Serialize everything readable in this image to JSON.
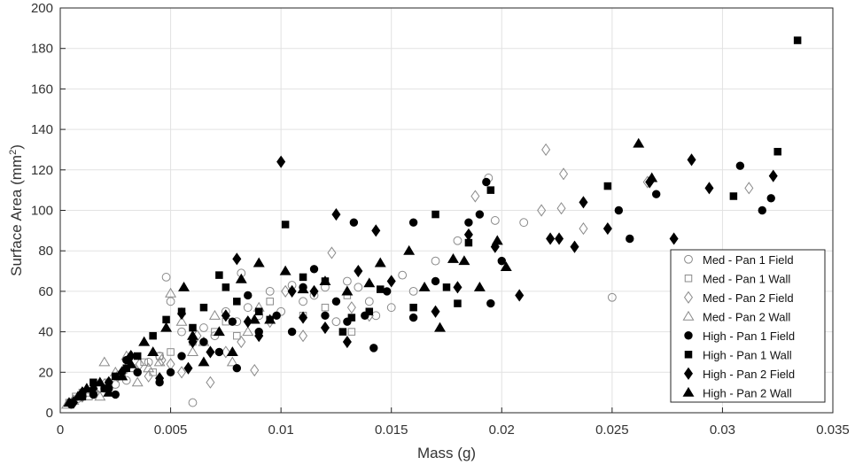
{
  "chart_data": {
    "type": "scatter",
    "xlabel": "Mass (g)",
    "ylabel": "Surface Area (mm",
    "ylabel_sup": "2",
    "ylabel_close": ")",
    "xlim": [
      0,
      0.035
    ],
    "ylim": [
      0,
      200
    ],
    "xticks": [
      0,
      0.005,
      0.01,
      0.015,
      0.02,
      0.025,
      0.03,
      0.035
    ],
    "xtick_labels": [
      "0",
      "0.005",
      "0.01",
      "0.015",
      "0.02",
      "0.025",
      "0.03",
      "0.035"
    ],
    "yticks": [
      0,
      20,
      40,
      60,
      80,
      100,
      120,
      140,
      160,
      180,
      200
    ],
    "ytick_labels": [
      "0",
      "20",
      "40",
      "60",
      "80",
      "100",
      "120",
      "140",
      "160",
      "180",
      "200"
    ],
    "grid": true,
    "legend_position": "bottom-right",
    "series": [
      {
        "name": "Med - Pan 1 Field",
        "marker": "circle",
        "filled": false,
        "points": [
          [
            0.0005,
            5
          ],
          [
            0.0008,
            7
          ],
          [
            0.001,
            9
          ],
          [
            0.0015,
            10
          ],
          [
            0.002,
            12
          ],
          [
            0.0025,
            14
          ],
          [
            0.003,
            16
          ],
          [
            0.0035,
            20
          ],
          [
            0.004,
            25
          ],
          [
            0.0045,
            28
          ],
          [
            0.0048,
            67
          ],
          [
            0.005,
            55
          ],
          [
            0.0055,
            40
          ],
          [
            0.006,
            5
          ],
          [
            0.0065,
            42
          ],
          [
            0.007,
            38
          ],
          [
            0.0075,
            50
          ],
          [
            0.008,
            45
          ],
          [
            0.0082,
            69
          ],
          [
            0.0085,
            52
          ],
          [
            0.009,
            48
          ],
          [
            0.0095,
            60
          ],
          [
            0.01,
            50
          ],
          [
            0.0105,
            63
          ],
          [
            0.011,
            55
          ],
          [
            0.0115,
            58
          ],
          [
            0.012,
            62
          ],
          [
            0.0125,
            45
          ],
          [
            0.013,
            65
          ],
          [
            0.0135,
            62
          ],
          [
            0.014,
            55
          ],
          [
            0.0143,
            48
          ],
          [
            0.015,
            52
          ],
          [
            0.0155,
            68
          ],
          [
            0.016,
            60
          ],
          [
            0.017,
            75
          ],
          [
            0.018,
            85
          ],
          [
            0.0194,
            116
          ],
          [
            0.0197,
            95
          ],
          [
            0.021,
            94
          ],
          [
            0.025,
            57
          ]
        ]
      },
      {
        "name": "Med - Pan 1 Wall",
        "marker": "square",
        "filled": false,
        "points": [
          [
            0.0004,
            5
          ],
          [
            0.0007,
            8
          ],
          [
            0.001,
            10
          ],
          [
            0.0013,
            8
          ],
          [
            0.0018,
            12
          ],
          [
            0.0022,
            15
          ],
          [
            0.0028,
            18
          ],
          [
            0.0033,
            22
          ],
          [
            0.0038,
            25
          ],
          [
            0.0042,
            20
          ],
          [
            0.0045,
            28
          ],
          [
            0.005,
            30
          ],
          [
            0.006,
            35
          ],
          [
            0.007,
            40
          ],
          [
            0.0075,
            45
          ],
          [
            0.008,
            38
          ],
          [
            0.009,
            50
          ],
          [
            0.0095,
            55
          ],
          [
            0.011,
            48
          ],
          [
            0.012,
            52
          ],
          [
            0.013,
            58
          ],
          [
            0.0132,
            40
          ]
        ]
      },
      {
        "name": "Med - Pan 2 Field",
        "marker": "diamond",
        "filled": false,
        "points": [
          [
            0.0006,
            6
          ],
          [
            0.001,
            8
          ],
          [
            0.0016,
            10
          ],
          [
            0.002,
            14
          ],
          [
            0.0026,
            18
          ],
          [
            0.003,
            22
          ],
          [
            0.0036,
            24
          ],
          [
            0.004,
            18
          ],
          [
            0.0046,
            26
          ],
          [
            0.005,
            24
          ],
          [
            0.0055,
            20
          ],
          [
            0.0062,
            38
          ],
          [
            0.0068,
            15
          ],
          [
            0.0075,
            30
          ],
          [
            0.0082,
            35
          ],
          [
            0.0088,
            21
          ],
          [
            0.0095,
            45
          ],
          [
            0.0102,
            60
          ],
          [
            0.011,
            38
          ],
          [
            0.0123,
            79
          ],
          [
            0.0132,
            52
          ],
          [
            0.014,
            48
          ],
          [
            0.0188,
            107
          ],
          [
            0.022,
            130
          ],
          [
            0.0218,
            100
          ],
          [
            0.0227,
            101
          ],
          [
            0.0228,
            118
          ],
          [
            0.0237,
            91
          ],
          [
            0.0266,
            114
          ],
          [
            0.0312,
            111
          ]
        ]
      },
      {
        "name": "Med - Pan 2 Wall",
        "marker": "triangle",
        "filled": false,
        "points": [
          [
            0.0003,
            4
          ],
          [
            0.0006,
            6
          ],
          [
            0.0009,
            8
          ],
          [
            0.0012,
            10
          ],
          [
            0.0015,
            12
          ],
          [
            0.0018,
            8
          ],
          [
            0.002,
            25
          ],
          [
            0.0025,
            20
          ],
          [
            0.003,
            28
          ],
          [
            0.0035,
            15
          ],
          [
            0.004,
            22
          ],
          [
            0.0045,
            25
          ],
          [
            0.005,
            59
          ],
          [
            0.0055,
            45
          ],
          [
            0.006,
            30
          ],
          [
            0.0065,
            35
          ],
          [
            0.007,
            48
          ],
          [
            0.0078,
            25
          ],
          [
            0.0085,
            40
          ],
          [
            0.009,
            52
          ]
        ]
      },
      {
        "name": "High - Pan 1 Field",
        "marker": "circle",
        "filled": true,
        "points": [
          [
            0.0005,
            4
          ],
          [
            0.001,
            8
          ],
          [
            0.0015,
            9
          ],
          [
            0.0022,
            12
          ],
          [
            0.0025,
            9
          ],
          [
            0.003,
            26
          ],
          [
            0.0035,
            20
          ],
          [
            0.0045,
            15
          ],
          [
            0.005,
            20
          ],
          [
            0.0055,
            28
          ],
          [
            0.0065,
            35
          ],
          [
            0.0072,
            30
          ],
          [
            0.0078,
            45
          ],
          [
            0.008,
            22
          ],
          [
            0.0085,
            58
          ],
          [
            0.009,
            40
          ],
          [
            0.0098,
            48
          ],
          [
            0.0105,
            40
          ],
          [
            0.011,
            62
          ],
          [
            0.0115,
            71
          ],
          [
            0.012,
            48
          ],
          [
            0.0125,
            55
          ],
          [
            0.013,
            45
          ],
          [
            0.0133,
            94
          ],
          [
            0.0138,
            48
          ],
          [
            0.0142,
            32
          ],
          [
            0.0148,
            60
          ],
          [
            0.016,
            47
          ],
          [
            0.016,
            94
          ],
          [
            0.017,
            65
          ],
          [
            0.0185,
            94
          ],
          [
            0.019,
            98
          ],
          [
            0.0193,
            114
          ],
          [
            0.0195,
            54
          ],
          [
            0.02,
            75
          ],
          [
            0.0253,
            100
          ],
          [
            0.0258,
            86
          ],
          [
            0.027,
            108
          ],
          [
            0.0308,
            122
          ],
          [
            0.0318,
            100
          ],
          [
            0.0322,
            106
          ]
        ]
      },
      {
        "name": "High - Pan 1 Wall",
        "marker": "square",
        "filled": true,
        "points": [
          [
            0.0005,
            5
          ],
          [
            0.001,
            8
          ],
          [
            0.0015,
            15
          ],
          [
            0.002,
            12
          ],
          [
            0.0025,
            18
          ],
          [
            0.003,
            22
          ],
          [
            0.0035,
            28
          ],
          [
            0.0042,
            38
          ],
          [
            0.0048,
            46
          ],
          [
            0.0055,
            50
          ],
          [
            0.006,
            42
          ],
          [
            0.0065,
            52
          ],
          [
            0.0072,
            68
          ],
          [
            0.0075,
            62
          ],
          [
            0.008,
            55
          ],
          [
            0.009,
            50
          ],
          [
            0.0095,
            46
          ],
          [
            0.0102,
            93
          ],
          [
            0.011,
            67
          ],
          [
            0.012,
            65
          ],
          [
            0.0128,
            40
          ],
          [
            0.0132,
            47
          ],
          [
            0.014,
            50
          ],
          [
            0.0145,
            61
          ],
          [
            0.016,
            52
          ],
          [
            0.017,
            98
          ],
          [
            0.0175,
            62
          ],
          [
            0.018,
            54
          ],
          [
            0.0185,
            84
          ],
          [
            0.0195,
            110
          ],
          [
            0.0248,
            112
          ],
          [
            0.0305,
            107
          ],
          [
            0.0325,
            129
          ],
          [
            0.0334,
            184
          ]
        ]
      },
      {
        "name": "High - Pan 2 Field",
        "marker": "diamond",
        "filled": true,
        "points": [
          [
            0.0006,
            5
          ],
          [
            0.001,
            10
          ],
          [
            0.0015,
            12
          ],
          [
            0.0022,
            15
          ],
          [
            0.0028,
            20
          ],
          [
            0.0032,
            28
          ],
          [
            0.0045,
            17
          ],
          [
            0.0055,
            49
          ],
          [
            0.0058,
            22
          ],
          [
            0.006,
            35
          ],
          [
            0.0068,
            30
          ],
          [
            0.0075,
            48
          ],
          [
            0.008,
            76
          ],
          [
            0.0085,
            45
          ],
          [
            0.009,
            38
          ],
          [
            0.01,
            124
          ],
          [
            0.0105,
            60
          ],
          [
            0.011,
            47
          ],
          [
            0.0115,
            60
          ],
          [
            0.012,
            42
          ],
          [
            0.0125,
            98
          ],
          [
            0.013,
            35
          ],
          [
            0.0135,
            70
          ],
          [
            0.0143,
            90
          ],
          [
            0.015,
            65
          ],
          [
            0.017,
            50
          ],
          [
            0.018,
            62
          ],
          [
            0.0185,
            88
          ],
          [
            0.0197,
            82
          ],
          [
            0.0208,
            58
          ],
          [
            0.0222,
            86
          ],
          [
            0.0226,
            86
          ],
          [
            0.0233,
            82
          ],
          [
            0.0237,
            104
          ],
          [
            0.0248,
            91
          ],
          [
            0.0267,
            114
          ],
          [
            0.0278,
            86
          ],
          [
            0.0286,
            125
          ],
          [
            0.0294,
            111
          ],
          [
            0.0323,
            117
          ]
        ]
      },
      {
        "name": "High - Pan 2 Wall",
        "marker": "triangle",
        "filled": true,
        "points": [
          [
            0.0004,
            5
          ],
          [
            0.0008,
            8
          ],
          [
            0.0012,
            12
          ],
          [
            0.0018,
            15
          ],
          [
            0.0022,
            10
          ],
          [
            0.0028,
            18
          ],
          [
            0.0032,
            24
          ],
          [
            0.0038,
            35
          ],
          [
            0.0042,
            30
          ],
          [
            0.0048,
            42
          ],
          [
            0.0056,
            62
          ],
          [
            0.006,
            38
          ],
          [
            0.0065,
            25
          ],
          [
            0.0072,
            40
          ],
          [
            0.0078,
            30
          ],
          [
            0.0082,
            66
          ],
          [
            0.0088,
            46
          ],
          [
            0.009,
            74
          ],
          [
            0.0095,
            46
          ],
          [
            0.0102,
            70
          ],
          [
            0.011,
            61
          ],
          [
            0.012,
            65
          ],
          [
            0.013,
            60
          ],
          [
            0.014,
            64
          ],
          [
            0.0145,
            74
          ],
          [
            0.0158,
            80
          ],
          [
            0.0165,
            62
          ],
          [
            0.0172,
            42
          ],
          [
            0.0178,
            76
          ],
          [
            0.0183,
            75
          ],
          [
            0.019,
            62
          ],
          [
            0.0198,
            85
          ],
          [
            0.0202,
            72
          ],
          [
            0.0262,
            133
          ],
          [
            0.0268,
            116
          ]
        ]
      }
    ]
  }
}
